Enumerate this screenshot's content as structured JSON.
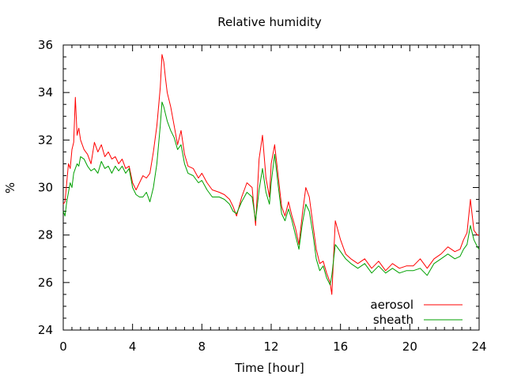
{
  "chart_data": {
    "type": "line",
    "title": "Relative humidity",
    "xlabel": "Time [hour]",
    "ylabel": "%",
    "xlim": [
      0,
      24
    ],
    "ylim": [
      24,
      36
    ],
    "xticks": [
      0,
      4,
      8,
      12,
      16,
      20,
      24
    ],
    "yticks": [
      24,
      26,
      28,
      30,
      32,
      34,
      36
    ],
    "grid": false,
    "legend": "bottom-right",
    "series": [
      {
        "name": "aerosol",
        "color": "#ff0000",
        "x": [
          0,
          0.1,
          0.2,
          0.3,
          0.4,
          0.5,
          0.6,
          0.7,
          0.8,
          0.9,
          1.0,
          1.2,
          1.4,
          1.6,
          1.8,
          2.0,
          2.2,
          2.4,
          2.6,
          2.8,
          3.0,
          3.2,
          3.4,
          3.6,
          3.8,
          4.0,
          4.2,
          4.4,
          4.6,
          4.8,
          5.0,
          5.2,
          5.4,
          5.6,
          5.7,
          5.8,
          5.9,
          6.0,
          6.2,
          6.4,
          6.6,
          6.8,
          7.0,
          7.2,
          7.5,
          7.8,
          8.0,
          8.3,
          8.6,
          9.0,
          9.3,
          9.6,
          9.8,
          10.0,
          10.3,
          10.6,
          10.9,
          11.1,
          11.3,
          11.5,
          11.7,
          11.9,
          12.0,
          12.2,
          12.4,
          12.6,
          12.8,
          13.0,
          13.2,
          13.4,
          13.6,
          13.8,
          14.0,
          14.2,
          14.4,
          14.6,
          14.8,
          15.0,
          15.2,
          15.4,
          15.5,
          15.7,
          16.0,
          16.3,
          16.6,
          17.0,
          17.4,
          17.8,
          18.2,
          18.6,
          19.0,
          19.4,
          19.8,
          20.2,
          20.6,
          21.0,
          21.4,
          21.8,
          22.2,
          22.6,
          22.9,
          23.1,
          23.3,
          23.5,
          23.7,
          23.9,
          24.0
        ],
        "values": [
          29.3,
          29.4,
          30.2,
          31.0,
          30.8,
          31.6,
          31.9,
          33.8,
          32.2,
          32.5,
          32.0,
          31.6,
          31.4,
          31.0,
          31.9,
          31.5,
          31.8,
          31.3,
          31.5,
          31.2,
          31.3,
          31.0,
          31.2,
          30.8,
          30.9,
          30.2,
          29.9,
          30.2,
          30.5,
          30.4,
          30.6,
          31.5,
          32.6,
          34.2,
          35.6,
          35.3,
          34.6,
          34.0,
          33.4,
          32.6,
          31.8,
          32.4,
          31.4,
          30.9,
          30.8,
          30.4,
          30.6,
          30.2,
          29.9,
          29.8,
          29.7,
          29.5,
          29.2,
          28.8,
          29.6,
          30.2,
          30.0,
          28.4,
          31.2,
          32.2,
          30.4,
          29.6,
          31.0,
          31.8,
          30.5,
          29.2,
          28.8,
          29.4,
          28.8,
          28.3,
          27.6,
          28.9,
          30.0,
          29.6,
          28.5,
          27.4,
          26.8,
          26.9,
          26.4,
          26.0,
          25.5,
          28.6,
          27.8,
          27.2,
          27.0,
          26.8,
          27.0,
          26.6,
          26.9,
          26.5,
          26.8,
          26.6,
          26.7,
          26.7,
          27.0,
          26.6,
          27.0,
          27.2,
          27.5,
          27.3,
          27.4,
          27.8,
          28.1,
          29.5,
          28.2,
          28.0,
          28.0
        ]
      },
      {
        "name": "sheath",
        "color": "#00a000",
        "x": [
          0,
          0.1,
          0.2,
          0.3,
          0.4,
          0.5,
          0.6,
          0.7,
          0.8,
          0.9,
          1.0,
          1.2,
          1.4,
          1.6,
          1.8,
          2.0,
          2.2,
          2.4,
          2.6,
          2.8,
          3.0,
          3.2,
          3.4,
          3.6,
          3.8,
          4.0,
          4.2,
          4.4,
          4.6,
          4.8,
          5.0,
          5.2,
          5.4,
          5.6,
          5.7,
          5.8,
          5.9,
          6.0,
          6.2,
          6.4,
          6.6,
          6.8,
          7.0,
          7.2,
          7.5,
          7.8,
          8.0,
          8.3,
          8.6,
          9.0,
          9.3,
          9.6,
          9.8,
          10.0,
          10.3,
          10.6,
          10.9,
          11.1,
          11.3,
          11.5,
          11.7,
          11.9,
          12.0,
          12.2,
          12.4,
          12.6,
          12.8,
          13.0,
          13.2,
          13.4,
          13.6,
          13.8,
          14.0,
          14.2,
          14.4,
          14.6,
          14.8,
          15.0,
          15.2,
          15.4,
          15.5,
          15.7,
          16.0,
          16.3,
          16.6,
          17.0,
          17.4,
          17.8,
          18.2,
          18.6,
          19.0,
          19.4,
          19.8,
          20.2,
          20.6,
          21.0,
          21.4,
          21.8,
          22.2,
          22.6,
          22.9,
          23.1,
          23.3,
          23.5,
          23.7,
          23.9,
          24.0
        ],
        "values": [
          29.0,
          28.8,
          29.4,
          29.8,
          30.2,
          30.0,
          30.6,
          30.8,
          31.0,
          30.9,
          31.3,
          31.2,
          30.9,
          30.7,
          30.8,
          30.6,
          31.1,
          30.8,
          30.9,
          30.6,
          30.9,
          30.7,
          30.9,
          30.6,
          30.8,
          30.0,
          29.7,
          29.6,
          29.6,
          29.8,
          29.4,
          30.0,
          31.0,
          32.6,
          33.6,
          33.4,
          33.1,
          32.8,
          32.4,
          32.1,
          31.6,
          31.8,
          31.0,
          30.6,
          30.5,
          30.2,
          30.3,
          29.9,
          29.6,
          29.6,
          29.5,
          29.3,
          29.0,
          28.9,
          29.4,
          29.8,
          29.6,
          28.6,
          29.9,
          30.8,
          29.8,
          29.3,
          30.2,
          31.4,
          30.1,
          28.9,
          28.6,
          29.1,
          28.6,
          28.0,
          27.4,
          28.5,
          29.3,
          29.0,
          28.1,
          27.0,
          26.5,
          26.7,
          26.2,
          25.9,
          26.3,
          27.6,
          27.3,
          27.0,
          26.8,
          26.6,
          26.8,
          26.4,
          26.7,
          26.4,
          26.6,
          26.4,
          26.5,
          26.5,
          26.6,
          26.3,
          26.8,
          27.0,
          27.2,
          27.0,
          27.1,
          27.4,
          27.6,
          28.4,
          27.8,
          27.5,
          27.4
        ]
      }
    ]
  }
}
